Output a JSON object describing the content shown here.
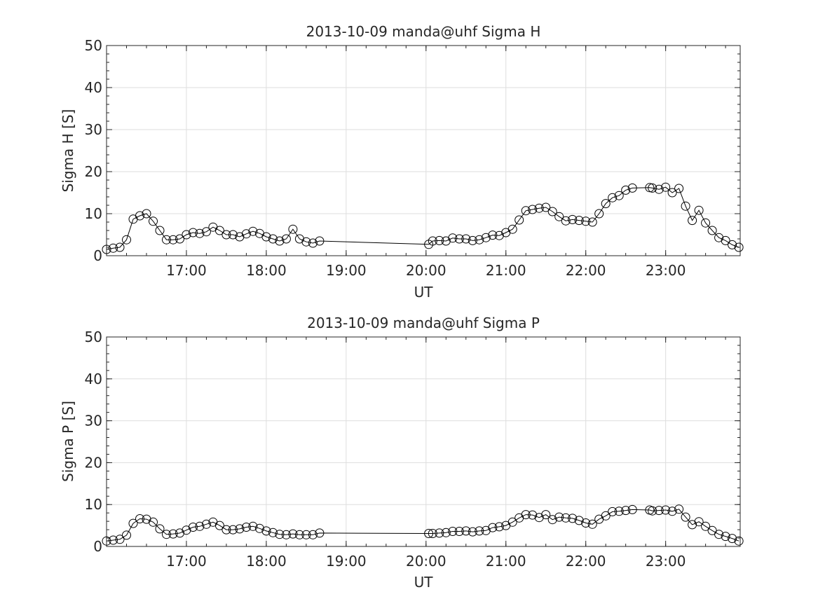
{
  "chart_data": [
    {
      "type": "line",
      "title": "2013-10-09  manda@uhf Sigma H",
      "xlabel": "UT",
      "ylabel": "Sigma H [S]",
      "xlim": [
        "16:00",
        "23:56"
      ],
      "ylim": [
        0,
        50
      ],
      "grid": true,
      "marker": "open-circle",
      "line_color": "#000000",
      "xticks": [
        "17:00",
        "18:00",
        "19:00",
        "20:00",
        "21:00",
        "22:00",
        "23:00"
      ],
      "yticks": [
        "0",
        "10",
        "20",
        "30",
        "40",
        "50"
      ],
      "series": [
        {
          "x": [
            "16:00",
            "16:05",
            "16:10",
            "16:15",
            "16:20",
            "16:25",
            "16:30",
            "16:35",
            "16:40",
            "16:45",
            "16:50",
            "16:55",
            "17:00",
            "17:05",
            "17:10",
            "17:15",
            "17:20",
            "17:25",
            "17:30",
            "17:35",
            "17:40",
            "17:45",
            "17:50",
            "17:55",
            "18:00",
            "18:05",
            "18:10",
            "18:15",
            "18:20",
            "18:25",
            "18:30",
            "18:35",
            "18:40",
            "20:02",
            "20:05",
            "20:10",
            "20:15",
            "20:20",
            "20:25",
            "20:30",
            "20:35",
            "20:40",
            "20:45",
            "20:50",
            "20:55",
            "21:00",
            "21:05",
            "21:10",
            "21:15",
            "21:20",
            "21:25",
            "21:30",
            "21:35",
            "21:40",
            "21:45",
            "21:50",
            "21:55",
            "22:00",
            "22:05",
            "22:10",
            "22:15",
            "22:20",
            "22:25",
            "22:30",
            "22:35",
            "22:48",
            "22:50",
            "22:55",
            "23:00",
            "23:05",
            "23:10",
            "23:15",
            "23:20",
            "23:25",
            "23:30",
            "23:35",
            "23:40",
            "23:45",
            "23:50",
            "23:55"
          ],
          "y": [
            1.5,
            1.8,
            2.0,
            3.8,
            8.7,
            9.5,
            10.0,
            8.2,
            6.0,
            3.8,
            3.8,
            4.0,
            5.0,
            5.5,
            5.3,
            5.7,
            6.8,
            6.0,
            5.0,
            5.0,
            4.5,
            5.2,
            5.8,
            5.3,
            4.5,
            4.0,
            3.5,
            4.0,
            6.3,
            4.0,
            3.3,
            3.0,
            3.5,
            2.7,
            3.5,
            3.6,
            3.5,
            4.2,
            4.0,
            4.0,
            3.6,
            3.8,
            4.3,
            4.9,
            4.8,
            5.5,
            6.3,
            8.5,
            10.7,
            11.0,
            11.3,
            11.5,
            10.5,
            9.3,
            8.3,
            8.6,
            8.4,
            8.2,
            8.0,
            10.0,
            12.4,
            13.8,
            14.3,
            15.6,
            16.1,
            16.2,
            16.1,
            15.8,
            16.3,
            15.0,
            16.0,
            11.8,
            8.4,
            10.8,
            7.8,
            6.0,
            4.3,
            3.6,
            2.6,
            2.0
          ]
        }
      ]
    },
    {
      "type": "line",
      "title": "2013-10-09  manda@uhf Sigma P",
      "xlabel": "UT",
      "ylabel": "Sigma P [S]",
      "xlim": [
        "16:00",
        "23:56"
      ],
      "ylim": [
        0,
        50
      ],
      "grid": true,
      "marker": "open-circle",
      "line_color": "#000000",
      "xticks": [
        "17:00",
        "18:00",
        "19:00",
        "20:00",
        "21:00",
        "22:00",
        "23:00"
      ],
      "yticks": [
        "0",
        "10",
        "20",
        "30",
        "40",
        "50"
      ],
      "series": [
        {
          "x": [
            "16:00",
            "16:05",
            "16:10",
            "16:15",
            "16:20",
            "16:25",
            "16:30",
            "16:35",
            "16:40",
            "16:45",
            "16:50",
            "16:55",
            "17:00",
            "17:05",
            "17:10",
            "17:15",
            "17:20",
            "17:25",
            "17:30",
            "17:35",
            "17:40",
            "17:45",
            "17:50",
            "17:55",
            "18:00",
            "18:05",
            "18:10",
            "18:15",
            "18:20",
            "18:25",
            "18:30",
            "18:35",
            "18:40",
            "20:02",
            "20:05",
            "20:10",
            "20:15",
            "20:20",
            "20:25",
            "20:30",
            "20:35",
            "20:40",
            "20:45",
            "20:50",
            "20:55",
            "21:00",
            "21:05",
            "21:10",
            "21:15",
            "21:20",
            "21:25",
            "21:30",
            "21:35",
            "21:40",
            "21:45",
            "21:50",
            "21:55",
            "22:00",
            "22:05",
            "22:10",
            "22:15",
            "22:20",
            "22:25",
            "22:30",
            "22:35",
            "22:48",
            "22:50",
            "22:55",
            "23:00",
            "23:05",
            "23:10",
            "23:15",
            "23:20",
            "23:25",
            "23:30",
            "23:35",
            "23:40",
            "23:45",
            "23:50",
            "23:55"
          ],
          "y": [
            1.3,
            1.5,
            1.7,
            2.7,
            5.5,
            6.6,
            6.5,
            5.8,
            4.2,
            2.9,
            3.0,
            3.2,
            3.9,
            4.6,
            4.8,
            5.3,
            5.8,
            5.0,
            4.0,
            4.0,
            4.2,
            4.6,
            4.8,
            4.3,
            3.7,
            3.3,
            2.9,
            2.8,
            3.0,
            2.8,
            2.8,
            2.8,
            3.2,
            3.1,
            3.1,
            3.2,
            3.3,
            3.6,
            3.6,
            3.7,
            3.5,
            3.7,
            3.8,
            4.5,
            4.7,
            5.0,
            5.8,
            6.8,
            7.6,
            7.5,
            6.9,
            7.6,
            6.4,
            7.0,
            6.8,
            6.7,
            6.2,
            5.6,
            5.3,
            6.5,
            7.3,
            8.3,
            8.4,
            8.6,
            8.8,
            8.7,
            8.5,
            8.6,
            8.7,
            8.4,
            8.9,
            7.0,
            5.2,
            5.9,
            4.8,
            3.8,
            2.9,
            2.4,
            1.9,
            1.3
          ]
        }
      ]
    }
  ]
}
